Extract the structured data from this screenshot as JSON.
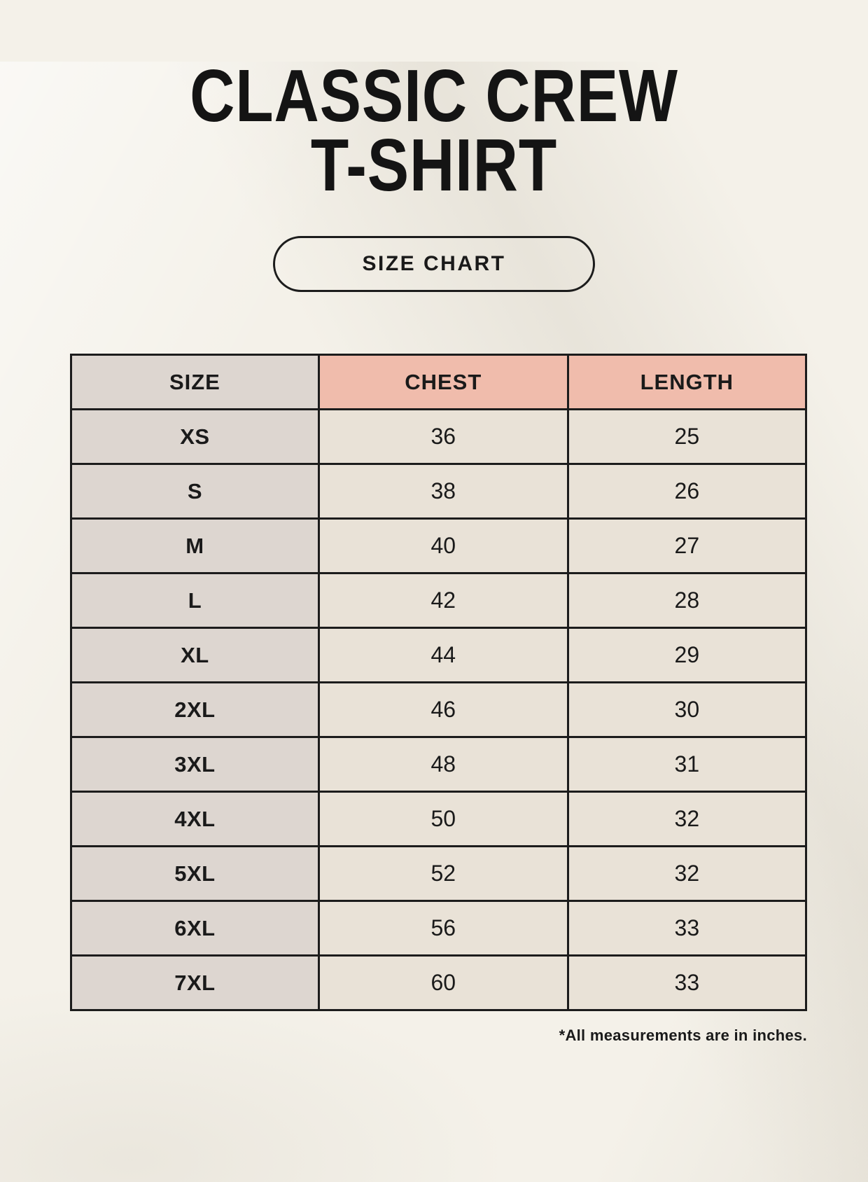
{
  "header": {
    "title_line1": "CLASSIC CREW",
    "title_line2": "T-SHIRT",
    "badge_label": "SIZE CHART"
  },
  "footnote": {
    "text": "*All measurements are in inches."
  },
  "colors": {
    "background": "#f4f1e9",
    "size_column_bg": "#ddd6d0",
    "accent_header_bg": "#f0bcac",
    "data_cell_bg": "#e9e2d7",
    "border": "#1c1c1c",
    "text": "#1a1a1a"
  },
  "chart_data": {
    "type": "table",
    "title": "CLASSIC CREW T-SHIRT — SIZE CHART",
    "units": "inches",
    "columns": [
      "SIZE",
      "CHEST",
      "LENGTH"
    ],
    "rows": [
      [
        "XS",
        36,
        25
      ],
      [
        "S",
        38,
        26
      ],
      [
        "M",
        40,
        27
      ],
      [
        "L",
        42,
        28
      ],
      [
        "XL",
        44,
        29
      ],
      [
        "2XL",
        46,
        30
      ],
      [
        "3XL",
        48,
        31
      ],
      [
        "4XL",
        50,
        32
      ],
      [
        "5XL",
        52,
        32
      ],
      [
        "6XL",
        56,
        33
      ],
      [
        "7XL",
        60,
        33
      ]
    ]
  }
}
